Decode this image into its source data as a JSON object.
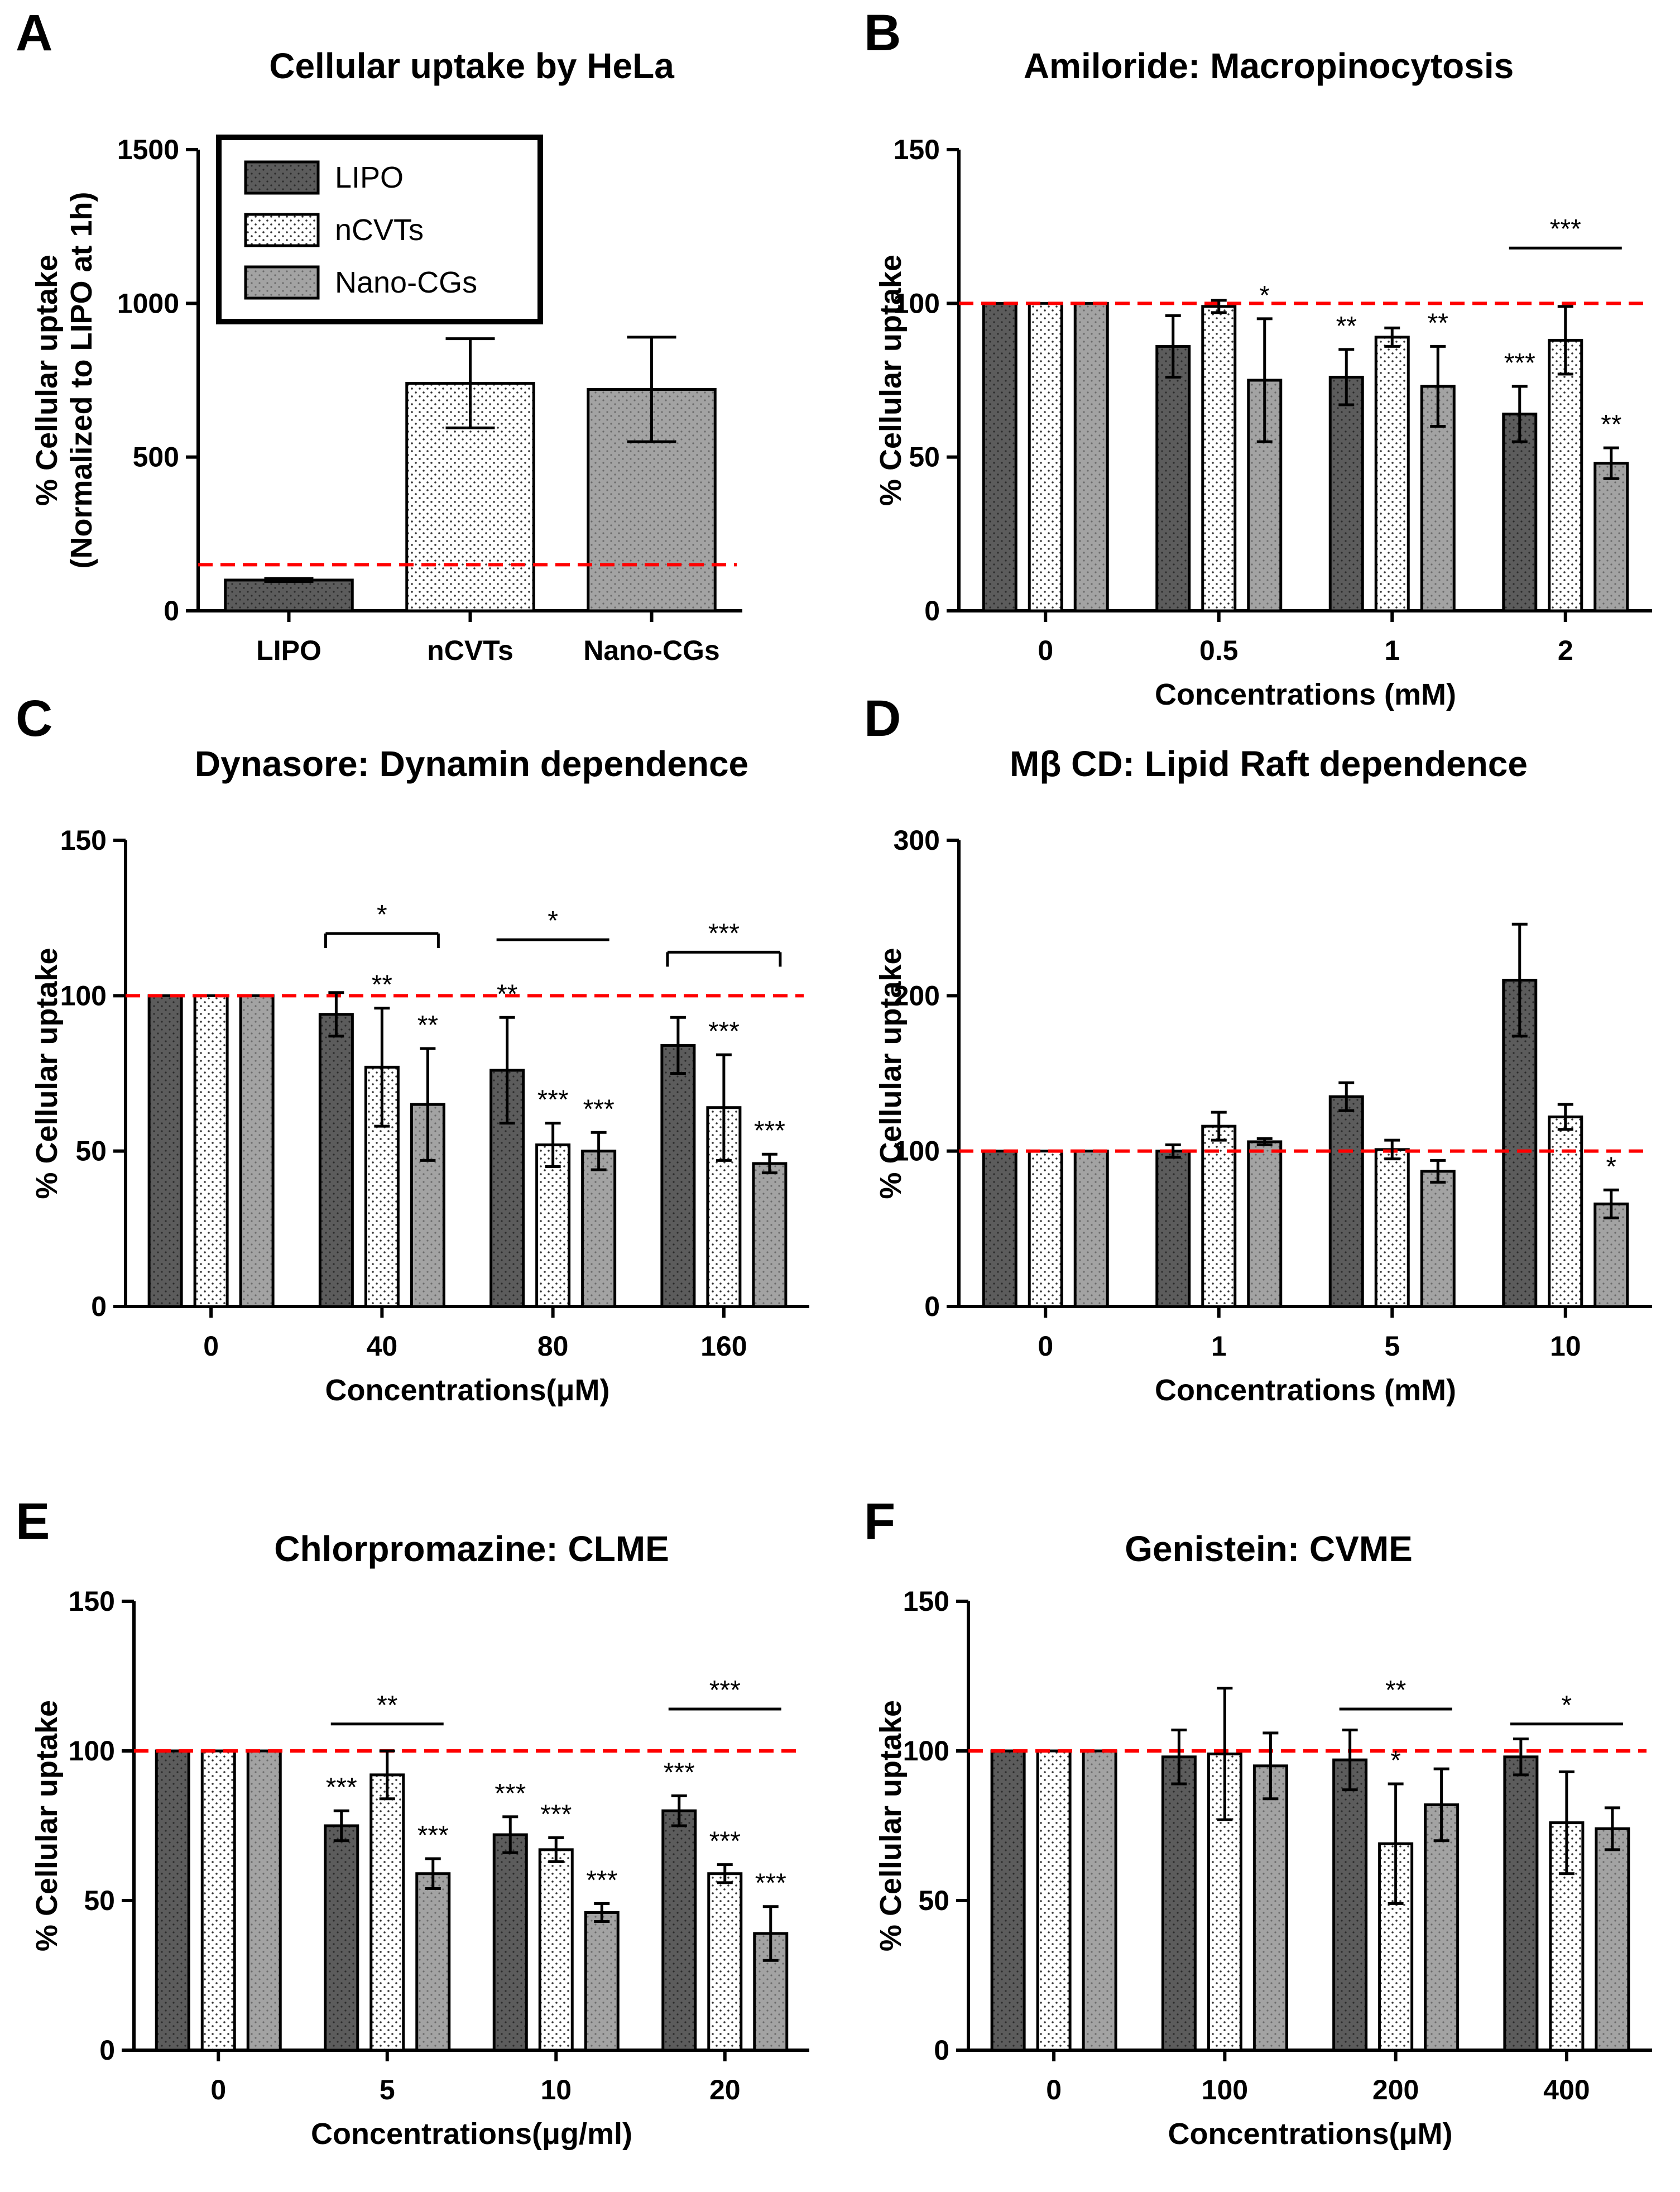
{
  "colors": {
    "lipo": "#5c5c5c",
    "ncvts": "#ffffff",
    "nanocgs": "#a3a3a3",
    "reference_line": "#ff0000",
    "axis": "#000000"
  },
  "legend": {
    "entries": [
      "LIPO",
      "nCVTs",
      "Nano-CGs"
    ]
  },
  "chart_data": [
    {
      "id": "A",
      "letter": "A",
      "type": "bar",
      "title": "Cellular uptake by HeLa",
      "ylabel_line1": "% Cellular uptake",
      "ylabel_line2": "(Normalized to LIPO at 1h)",
      "xlabel": "",
      "ylim": [
        0,
        1500
      ],
      "yticks": [
        0,
        500,
        1000,
        1500
      ],
      "reference": 150,
      "layout": "single",
      "categories": [
        "LIPO",
        "nCVTs",
        "Nano-CGs"
      ],
      "series": [
        {
          "name": "LIPO",
          "values": [
            100,
            740,
            720
          ],
          "errors": [
            5,
            145,
            170
          ]
        }
      ],
      "bar_fills": [
        "lipo",
        "ncvts",
        "nanocgs"
      ],
      "annotations": [],
      "brackets": []
    },
    {
      "id": "B",
      "letter": "B",
      "type": "bar",
      "title": "Amiloride: Macropinocytosis",
      "ylabel_line1": "% Cellular uptake",
      "xlabel": "Concentrations (mM)",
      "ylim": [
        0,
        150
      ],
      "yticks": [
        0,
        50,
        100,
        150
      ],
      "reference": 100,
      "layout": "grouped",
      "categories": [
        "0",
        "0.5",
        "1",
        "2"
      ],
      "series": [
        {
          "name": "LIPO",
          "values": [
            100,
            86,
            76,
            64
          ],
          "errors": [
            0,
            10,
            9,
            9
          ]
        },
        {
          "name": "nCVTs",
          "values": [
            100,
            99,
            89,
            88
          ],
          "errors": [
            0,
            2,
            3,
            11
          ]
        },
        {
          "name": "Nano-CGs",
          "values": [
            100,
            75,
            73,
            48
          ],
          "errors": [
            0,
            20,
            13,
            5
          ]
        }
      ],
      "annotations": [
        {
          "group": 1,
          "series": 2,
          "text": "*"
        },
        {
          "group": 2,
          "series": 0,
          "text": "**"
        },
        {
          "group": 2,
          "series": 2,
          "text": "**"
        },
        {
          "group": 3,
          "series": 0,
          "text": "***"
        },
        {
          "group": 3,
          "series": 2,
          "text": "**"
        }
      ],
      "brackets": [
        {
          "group": 3,
          "y": 118,
          "text": "***",
          "ticks": false
        }
      ]
    },
    {
      "id": "C",
      "letter": "C",
      "type": "bar",
      "title": "Dynasore: Dynamin dependence",
      "ylabel_line1": "% Cellular uptake",
      "xlabel": "Concentrations(μM)",
      "ylim": [
        0,
        150
      ],
      "yticks": [
        0,
        50,
        100,
        150
      ],
      "reference": 100,
      "layout": "grouped",
      "categories": [
        "0",
        "40",
        "80",
        "160"
      ],
      "series": [
        {
          "name": "LIPO",
          "values": [
            100,
            94,
            76,
            84
          ],
          "errors": [
            0,
            7,
            17,
            9
          ]
        },
        {
          "name": "nCVTs",
          "values": [
            100,
            77,
            52,
            64
          ],
          "errors": [
            0,
            19,
            7,
            17
          ]
        },
        {
          "name": "Nano-CGs",
          "values": [
            100,
            65,
            50,
            46
          ],
          "errors": [
            0,
            18,
            6,
            3
          ]
        }
      ],
      "annotations": [
        {
          "group": 1,
          "series": 1,
          "text": "**"
        },
        {
          "group": 1,
          "series": 2,
          "text": "**"
        },
        {
          "group": 2,
          "series": 0,
          "text": "**"
        },
        {
          "group": 2,
          "series": 1,
          "text": "***"
        },
        {
          "group": 2,
          "series": 2,
          "text": "***"
        },
        {
          "group": 3,
          "series": 1,
          "text": "***"
        },
        {
          "group": 3,
          "series": 2,
          "text": "***"
        }
      ],
      "brackets": [
        {
          "group": 1,
          "y": 120,
          "text": "*",
          "ticks": true
        },
        {
          "group": 2,
          "y": 118,
          "text": "*",
          "ticks": false
        },
        {
          "group": 3,
          "y": 114,
          "text": "***",
          "ticks": true
        }
      ]
    },
    {
      "id": "D",
      "letter": "D",
      "type": "bar",
      "title": "Mβ CD: Lipid Raft dependence",
      "ylabel_line1": "% Cellular uptake",
      "xlabel": "Concentrations (mM)",
      "ylim": [
        0,
        300
      ],
      "yticks": [
        0,
        100,
        200,
        300
      ],
      "reference": 100,
      "layout": "grouped",
      "categories": [
        "0",
        "1",
        "5",
        "10"
      ],
      "series": [
        {
          "name": "LIPO",
          "values": [
            100,
            100,
            135,
            210
          ],
          "errors": [
            0,
            4,
            9,
            36
          ]
        },
        {
          "name": "nCVTs",
          "values": [
            100,
            116,
            101,
            122
          ],
          "errors": [
            0,
            9,
            6,
            8
          ]
        },
        {
          "name": "Nano-CGs",
          "values": [
            100,
            106,
            87,
            66
          ],
          "errors": [
            0,
            2,
            7,
            9
          ]
        }
      ],
      "annotations": [
        {
          "group": 3,
          "series": 2,
          "text": "*"
        }
      ],
      "brackets": []
    },
    {
      "id": "E",
      "letter": "E",
      "type": "bar",
      "title": "Chlorpromazine: CLME",
      "ylabel_line1": "% Cellular uptake",
      "xlabel": "Concentrations(μg/ml)",
      "ylim": [
        0,
        150
      ],
      "yticks": [
        0,
        50,
        100,
        150
      ],
      "reference": 100,
      "layout": "grouped",
      "categories": [
        "0",
        "5",
        "10",
        "20"
      ],
      "series": [
        {
          "name": "LIPO",
          "values": [
            100,
            75,
            72,
            80
          ],
          "errors": [
            0,
            5,
            6,
            5
          ]
        },
        {
          "name": "nCVTs",
          "values": [
            100,
            92,
            67,
            59
          ],
          "errors": [
            0,
            8,
            4,
            3
          ]
        },
        {
          "name": "Nano-CGs",
          "values": [
            100,
            59,
            46,
            39
          ],
          "errors": [
            0,
            5,
            3,
            9
          ]
        }
      ],
      "annotations": [
        {
          "group": 1,
          "series": 0,
          "text": "***"
        },
        {
          "group": 1,
          "series": 2,
          "text": "***"
        },
        {
          "group": 2,
          "series": 0,
          "text": "***"
        },
        {
          "group": 2,
          "series": 1,
          "text": "***"
        },
        {
          "group": 2,
          "series": 2,
          "text": "***"
        },
        {
          "group": 3,
          "series": 0,
          "text": "***"
        },
        {
          "group": 3,
          "series": 1,
          "text": "***"
        },
        {
          "group": 3,
          "series": 2,
          "text": "***"
        }
      ],
      "brackets": [
        {
          "group": 1,
          "y": 109,
          "text": "**",
          "ticks": false
        },
        {
          "group": 3,
          "y": 114,
          "text": "***",
          "ticks": false
        }
      ]
    },
    {
      "id": "F",
      "letter": "F",
      "type": "bar",
      "title": "Genistein: CVME",
      "ylabel_line1": "% Cellular uptake",
      "xlabel": "Concentrations(μM)",
      "ylim": [
        0,
        150
      ],
      "yticks": [
        0,
        50,
        100,
        150
      ],
      "reference": 100,
      "layout": "grouped",
      "categories": [
        "0",
        "100",
        "200",
        "400"
      ],
      "series": [
        {
          "name": "LIPO",
          "values": [
            100,
            98,
            97,
            98
          ],
          "errors": [
            0,
            9,
            10,
            6
          ]
        },
        {
          "name": "nCVTs",
          "values": [
            100,
            99,
            69,
            76
          ],
          "errors": [
            0,
            22,
            20,
            17
          ]
        },
        {
          "name": "Nano-CGs",
          "values": [
            100,
            95,
            82,
            74
          ],
          "errors": [
            0,
            11,
            12,
            7
          ]
        }
      ],
      "annotations": [
        {
          "group": 2,
          "series": 1,
          "text": "*"
        }
      ],
      "brackets": [
        {
          "group": 2,
          "y": 114,
          "text": "**",
          "ticks": false
        },
        {
          "group": 3,
          "y": 109,
          "text": "*",
          "ticks": false
        }
      ]
    }
  ]
}
